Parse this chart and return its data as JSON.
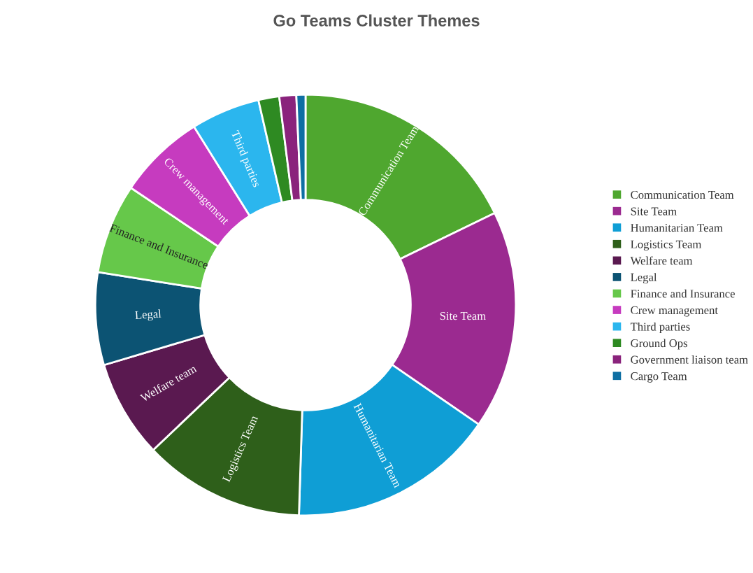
{
  "chart_data": {
    "type": "donut",
    "title": "Go Teams Cluster Themes",
    "categories": [
      "Communication Team",
      "Site Team",
      "Humanitarian Team",
      "Logistics Team",
      "Welfare team",
      "Legal",
      "Finance and Insurance",
      "Crew management",
      "Third parties",
      "Ground Ops",
      "Government liaison team",
      "Cargo Team"
    ],
    "values": [
      17.8,
      16.8,
      15.9,
      12.4,
      7.5,
      7.1,
      6.9,
      6.7,
      5.3,
      1.6,
      1.3,
      0.7
    ],
    "colors": [
      "#4fa72f",
      "#9b2a90",
      "#0f9ed5",
      "#2e5f1a",
      "#5a1950",
      "#0c5373",
      "#66c84a",
      "#c63bbf",
      "#2bb6ee",
      "#2e8a22",
      "#8a237c",
      "#0e6fa3"
    ],
    "legend": "right"
  }
}
